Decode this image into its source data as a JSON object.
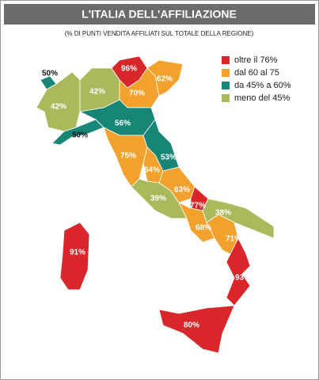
{
  "header": {
    "title": "L'ITALIA DELL'AFFILIAZIONE",
    "subtitle": "(% DI PUNTI VENDITA AFFILIATI SUL TOTALE DELLA REGIONE)"
  },
  "legend": [
    {
      "label": "oltre il 76%",
      "color": "#d9262b"
    },
    {
      "label": "dal 60 al 75",
      "color": "#f2a12c"
    },
    {
      "label": "da 45% a 60%",
      "color": "#178677"
    },
    {
      "label": "meno del 45%",
      "color": "#a9b95b"
    }
  ],
  "regions": [
    {
      "label": "50%",
      "color": "#178677"
    },
    {
      "label": "42%",
      "color": "#a9b95b"
    },
    {
      "label": "42%",
      "color": "#a9b95b"
    },
    {
      "label": "96%",
      "color": "#d9262b"
    },
    {
      "label": "70%",
      "color": "#f2a12c"
    },
    {
      "label": "62%",
      "color": "#f2a12c"
    },
    {
      "label": "50%",
      "color": "#178677"
    },
    {
      "label": "56%",
      "color": "#178677"
    },
    {
      "label": "75%",
      "color": "#f2a12c"
    },
    {
      "label": "53%",
      "color": "#178677"
    },
    {
      "label": "64%",
      "color": "#f2a12c"
    },
    {
      "label": "39%",
      "color": "#a9b95b"
    },
    {
      "label": "63%",
      "color": "#f2a12c"
    },
    {
      "label": "77%",
      "color": "#d9262b"
    },
    {
      "label": "38%",
      "color": "#a9b95b"
    },
    {
      "label": "68%",
      "color": "#f2a12c"
    },
    {
      "label": "71%",
      "color": "#f2a12c"
    },
    {
      "label": "93%",
      "color": "#d9262b"
    },
    {
      "label": "80%",
      "color": "#d9262b"
    },
    {
      "label": "91%",
      "color": "#d9262b"
    }
  ]
}
